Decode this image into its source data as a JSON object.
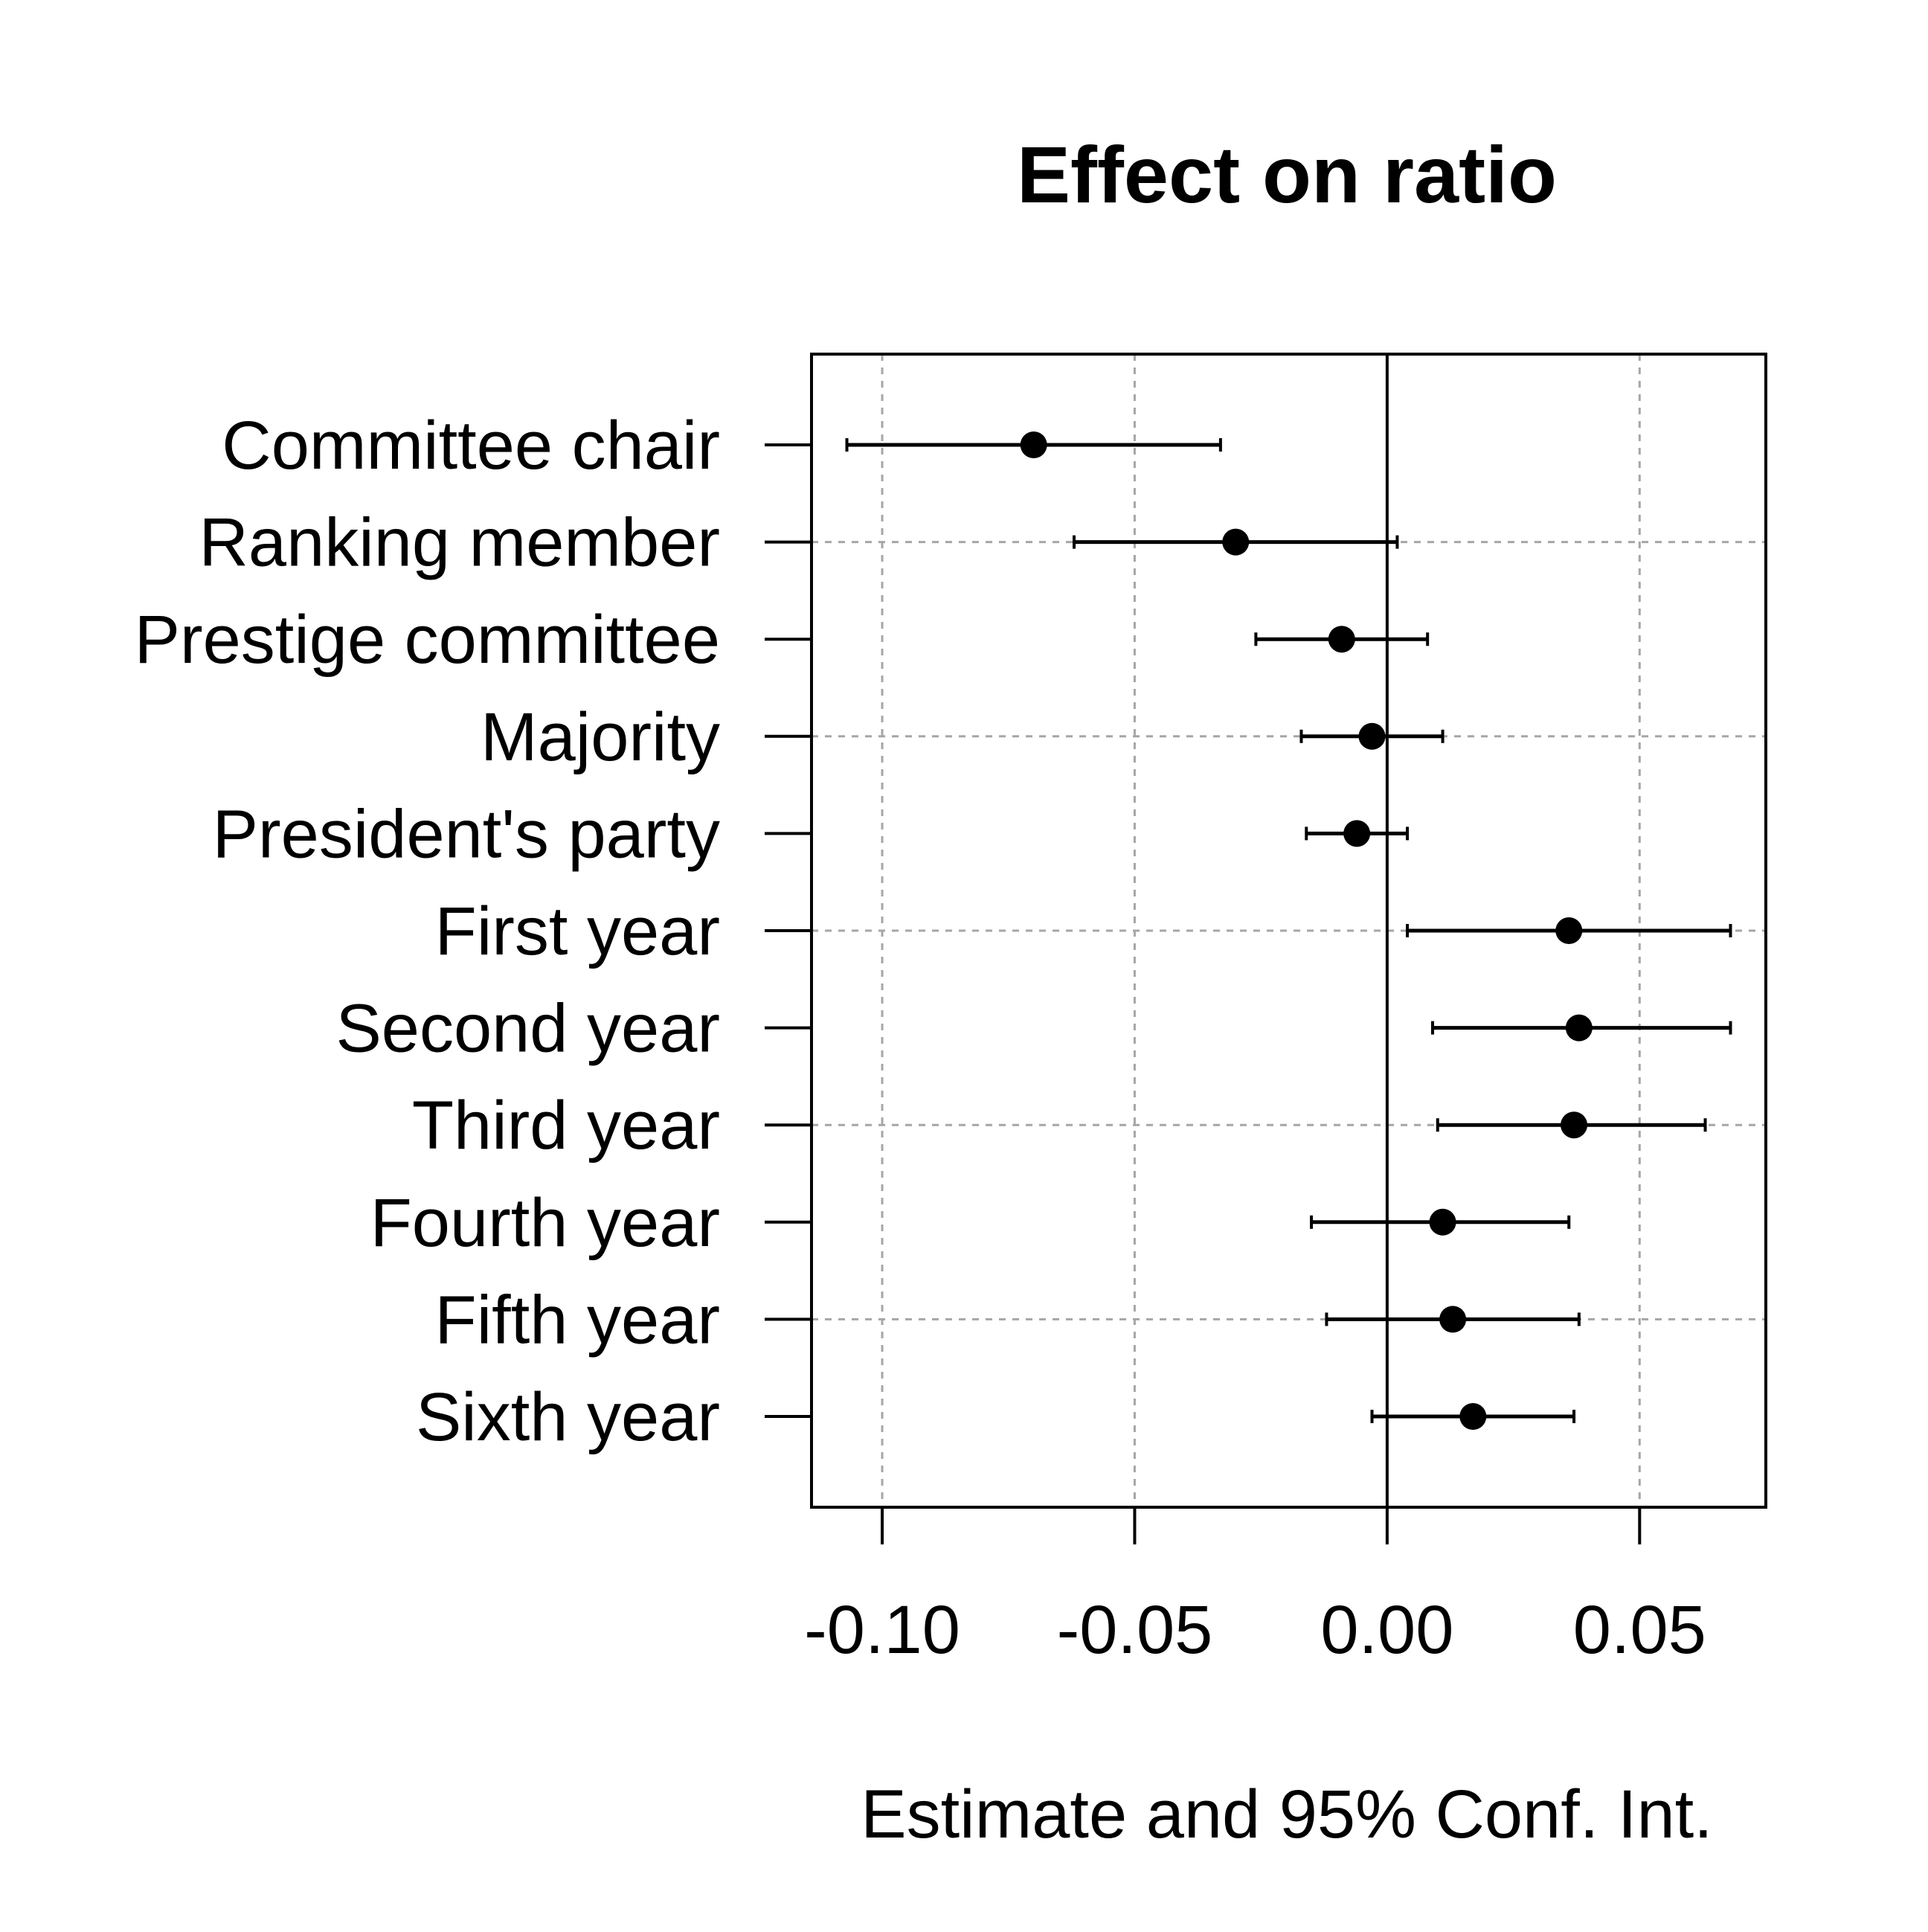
{
  "chart_data": {
    "type": "forest",
    "title": "Effect on ratio",
    "xlabel": "Estimate and 95% Conf. Int.",
    "ylabel": "",
    "xlim": [
      -0.114,
      0.075
    ],
    "x_ticks": [
      -0.1,
      -0.05,
      0.0,
      0.05
    ],
    "x_tick_labels": [
      "-0.10",
      "-0.05",
      "0.00",
      "0.05"
    ],
    "reference_line": 0.0,
    "grid": "dotted",
    "categories": [
      "Committee chair",
      "Ranking member",
      "Prestige committee",
      "Majority",
      "President's party",
      "First year",
      "Second year",
      "Third year",
      "Fourth year",
      "Fifth year",
      "Sixth year"
    ],
    "series": [
      {
        "estimate": [
          -0.07,
          -0.03,
          -0.009,
          -0.003,
          -0.006,
          0.036,
          0.038,
          0.037,
          0.011,
          0.013,
          0.017
        ],
        "ci_lower": [
          -0.107,
          -0.062,
          -0.026,
          -0.017,
          -0.016,
          0.004,
          0.009,
          0.01,
          -0.015,
          -0.012,
          -0.003
        ],
        "ci_upper": [
          -0.033,
          0.002,
          0.008,
          0.011,
          0.004,
          0.068,
          0.068,
          0.063,
          0.036,
          0.038,
          0.037
        ]
      }
    ],
    "colors": {
      "marks": "#000000",
      "grid": "#a6a6a6",
      "frame": "#000000"
    }
  }
}
